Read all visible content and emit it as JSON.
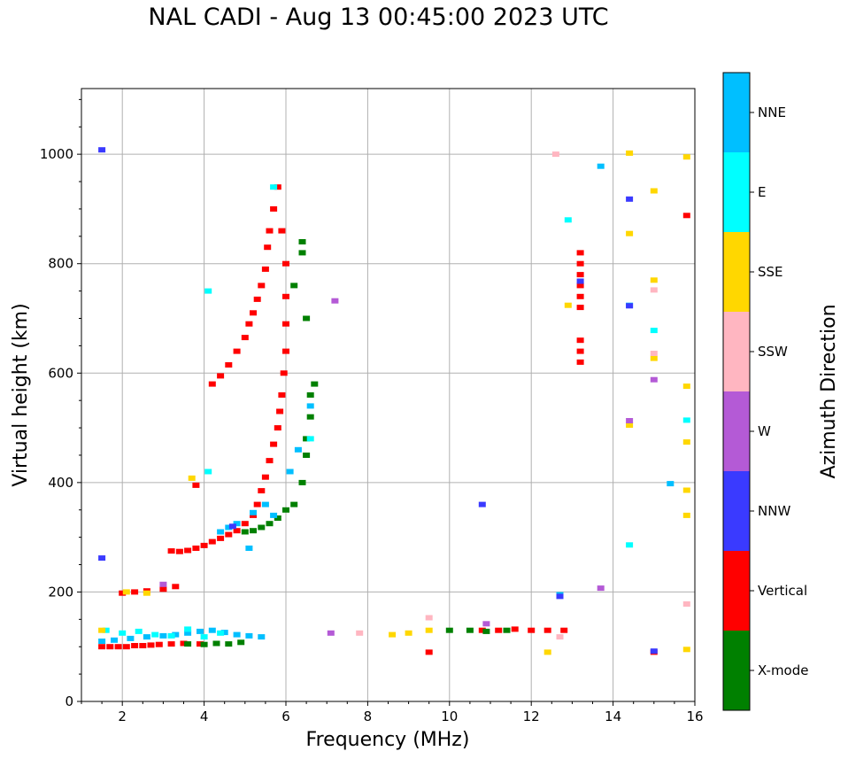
{
  "chart_data": {
    "type": "scatter",
    "title": "NAL CADI - Aug 13 00:45:00 2023 UTC",
    "xlabel": "Frequency (MHz)",
    "ylabel": "Virtual height (km)",
    "xlim": [
      1,
      16
    ],
    "ylim": [
      0,
      1120
    ],
    "xticks": [
      2,
      4,
      6,
      8,
      10,
      12,
      14,
      16
    ],
    "yticks": [
      0,
      200,
      400,
      600,
      800,
      1000
    ],
    "grid": true,
    "colorbar": {
      "label": "Azimuth Direction",
      "categories": [
        {
          "name": "X-mode",
          "color": "#008000"
        },
        {
          "name": "Vertical",
          "color": "#ff0000"
        },
        {
          "name": "NNW",
          "color": "#3a3aff"
        },
        {
          "name": "W",
          "color": "#b45ad6"
        },
        {
          "name": "SSW",
          "color": "#ffb6c1"
        },
        {
          "name": "SSE",
          "color": "#ffd700"
        },
        {
          "name": "E",
          "color": "#00ffff"
        },
        {
          "name": "NNE",
          "color": "#00bfff"
        }
      ]
    },
    "series": [
      {
        "name": "Vertical",
        "points": [
          [
            1.5,
            100
          ],
          [
            1.7,
            100
          ],
          [
            1.9,
            100
          ],
          [
            2.1,
            100
          ],
          [
            2.3,
            102
          ],
          [
            2.5,
            102
          ],
          [
            2.7,
            103
          ],
          [
            2.9,
            104
          ],
          [
            3.2,
            105
          ],
          [
            3.5,
            106
          ],
          [
            3.9,
            105
          ],
          [
            2.0,
            198
          ],
          [
            2.3,
            200
          ],
          [
            2.6,
            202
          ],
          [
            3.0,
            205
          ],
          [
            3.3,
            210
          ],
          [
            3.8,
            395
          ],
          [
            3.2,
            275
          ],
          [
            3.4,
            274
          ],
          [
            3.6,
            276
          ],
          [
            3.8,
            280
          ],
          [
            4.0,
            285
          ],
          [
            4.2,
            292
          ],
          [
            4.4,
            298
          ],
          [
            4.6,
            305
          ],
          [
            4.8,
            312
          ],
          [
            5.0,
            325
          ],
          [
            5.2,
            340
          ],
          [
            5.3,
            360
          ],
          [
            5.4,
            385
          ],
          [
            5.5,
            410
          ],
          [
            5.6,
            440
          ],
          [
            5.7,
            470
          ],
          [
            5.8,
            500
          ],
          [
            5.85,
            530
          ],
          [
            5.9,
            560
          ],
          [
            5.95,
            600
          ],
          [
            6.0,
            640
          ],
          [
            6.0,
            690
          ],
          [
            6.0,
            740
          ],
          [
            6.0,
            800
          ],
          [
            5.9,
            860
          ],
          [
            4.2,
            580
          ],
          [
            4.4,
            595
          ],
          [
            4.6,
            615
          ],
          [
            4.8,
            640
          ],
          [
            5.0,
            665
          ],
          [
            5.1,
            690
          ],
          [
            5.2,
            710
          ],
          [
            5.3,
            735
          ],
          [
            5.4,
            760
          ],
          [
            5.5,
            790
          ],
          [
            5.55,
            830
          ],
          [
            5.6,
            860
          ],
          [
            5.7,
            900
          ],
          [
            5.8,
            940
          ],
          [
            13.2,
            820
          ],
          [
            13.2,
            800
          ],
          [
            13.2,
            780
          ],
          [
            13.2,
            760
          ],
          [
            13.2,
            740
          ],
          [
            13.2,
            720
          ],
          [
            13.2,
            660
          ],
          [
            13.2,
            640
          ],
          [
            13.2,
            620
          ],
          [
            10.8,
            130
          ],
          [
            11.2,
            130
          ],
          [
            11.6,
            132
          ],
          [
            12.0,
            130
          ],
          [
            12.4,
            130
          ],
          [
            12.8,
            130
          ],
          [
            15.0,
            90
          ],
          [
            15.8,
            888
          ],
          [
            9.5,
            90
          ]
        ]
      },
      {
        "name": "X-mode",
        "points": [
          [
            3.6,
            105
          ],
          [
            4.0,
            104
          ],
          [
            4.3,
            106
          ],
          [
            4.6,
            105
          ],
          [
            4.9,
            108
          ],
          [
            5.0,
            310
          ],
          [
            5.2,
            312
          ],
          [
            5.4,
            318
          ],
          [
            5.6,
            325
          ],
          [
            5.8,
            335
          ],
          [
            6.0,
            350
          ],
          [
            6.2,
            360
          ],
          [
            6.4,
            400
          ],
          [
            6.5,
            450
          ],
          [
            6.5,
            480
          ],
          [
            6.6,
            520
          ],
          [
            6.6,
            560
          ],
          [
            6.7,
            580
          ],
          [
            6.2,
            760
          ],
          [
            6.4,
            840
          ],
          [
            6.4,
            820
          ],
          [
            6.5,
            700
          ],
          [
            10.0,
            130
          ],
          [
            10.5,
            130
          ],
          [
            10.9,
            128
          ],
          [
            11.4,
            130
          ]
        ]
      },
      {
        "name": "NNE",
        "points": [
          [
            1.5,
            110
          ],
          [
            1.8,
            112
          ],
          [
            2.2,
            115
          ],
          [
            2.6,
            118
          ],
          [
            3.0,
            120
          ],
          [
            3.3,
            122
          ],
          [
            3.6,
            125
          ],
          [
            3.9,
            128
          ],
          [
            4.2,
            130
          ],
          [
            4.5,
            126
          ],
          [
            4.8,
            122
          ],
          [
            5.1,
            120
          ],
          [
            5.4,
            118
          ],
          [
            4.4,
            310
          ],
          [
            4.6,
            318
          ],
          [
            4.8,
            325
          ],
          [
            5.2,
            345
          ],
          [
            5.5,
            360
          ],
          [
            5.7,
            340
          ],
          [
            6.1,
            420
          ],
          [
            6.3,
            460
          ],
          [
            6.6,
            540
          ],
          [
            5.1,
            280
          ],
          [
            12.7,
            195
          ],
          [
            14.4,
            724
          ],
          [
            15.4,
            398
          ],
          [
            13.7,
            978
          ]
        ]
      },
      {
        "name": "E",
        "points": [
          [
            1.6,
            130
          ],
          [
            2.0,
            125
          ],
          [
            2.4,
            128
          ],
          [
            2.8,
            122
          ],
          [
            3.2,
            120
          ],
          [
            3.6,
            132
          ],
          [
            4.0,
            118
          ],
          [
            4.4,
            125
          ],
          [
            4.1,
            750
          ],
          [
            4.1,
            420
          ],
          [
            5.7,
            940
          ],
          [
            12.9,
            880
          ],
          [
            15.0,
            678
          ],
          [
            14.4,
            286
          ],
          [
            15.8,
            514
          ],
          [
            6.6,
            480
          ]
        ]
      },
      {
        "name": "SSE",
        "points": [
          [
            1.5,
            130
          ],
          [
            2.1,
            200
          ],
          [
            2.6,
            198
          ],
          [
            3.7,
            408
          ],
          [
            8.6,
            122
          ],
          [
            9.0,
            125
          ],
          [
            9.5,
            130
          ],
          [
            12.4,
            90
          ],
          [
            12.9,
            724
          ],
          [
            14.4,
            1002
          ],
          [
            14.4,
            855
          ],
          [
            14.4,
            505
          ],
          [
            15.0,
            770
          ],
          [
            15.0,
            627
          ],
          [
            15.0,
            933
          ],
          [
            15.8,
            995
          ],
          [
            15.8,
            576
          ],
          [
            15.8,
            474
          ],
          [
            15.8,
            386
          ],
          [
            15.8,
            340
          ],
          [
            15.8,
            95
          ]
        ]
      },
      {
        "name": "SSW",
        "points": [
          [
            9.5,
            153
          ],
          [
            7.8,
            125
          ],
          [
            12.6,
            1000
          ],
          [
            15.0,
            752
          ],
          [
            15.0,
            636
          ],
          [
            15.8,
            178
          ],
          [
            12.7,
            118
          ]
        ]
      },
      {
        "name": "W",
        "points": [
          [
            7.2,
            732
          ],
          [
            10.9,
            142
          ],
          [
            13.7,
            207
          ],
          [
            14.4,
            513
          ],
          [
            15.0,
            588
          ],
          [
            7.1,
            125
          ],
          [
            3.0,
            214
          ]
        ]
      },
      {
        "name": "NNW",
        "points": [
          [
            1.5,
            1008
          ],
          [
            1.5,
            262
          ],
          [
            10.8,
            360
          ],
          [
            12.7,
            192
          ],
          [
            14.4,
            918
          ],
          [
            14.4,
            723
          ],
          [
            15.0,
            92
          ],
          [
            13.2,
            768
          ],
          [
            4.7,
            320
          ]
        ]
      }
    ]
  }
}
